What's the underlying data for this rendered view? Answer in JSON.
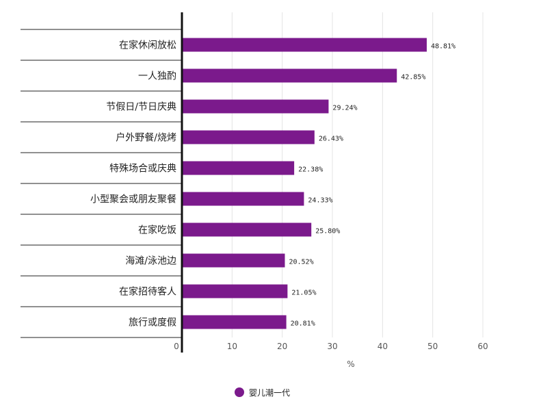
{
  "chart_data": {
    "type": "bar",
    "orientation": "horizontal",
    "categories": [
      "在家休闲放松",
      "一人独酌",
      "节假日/节日庆典",
      "户外野餐/烧烤",
      "特殊场合或庆典",
      "小型聚会或朋友聚餐",
      "在家吃饭",
      "海滩/泳池边",
      "在家招待客人",
      "旅行或度假"
    ],
    "series": [
      {
        "name": "婴儿潮一代",
        "values": [
          48.81,
          42.85,
          29.24,
          26.43,
          22.38,
          24.33,
          25.8,
          20.52,
          21.05,
          20.81
        ],
        "labels": [
          "48.81%",
          "42.85%",
          "29.24%",
          "26.43%",
          "22.38%",
          "24.33%",
          "25.80%",
          "20.52%",
          "21.05%",
          "20.81%"
        ],
        "color": "#7b1a8c"
      }
    ],
    "xlabel": "%",
    "xlim": [
      0,
      60
    ],
    "xticks": [
      0,
      10,
      20,
      30,
      40,
      50,
      60
    ],
    "grid": true,
    "legend_position": "bottom"
  }
}
